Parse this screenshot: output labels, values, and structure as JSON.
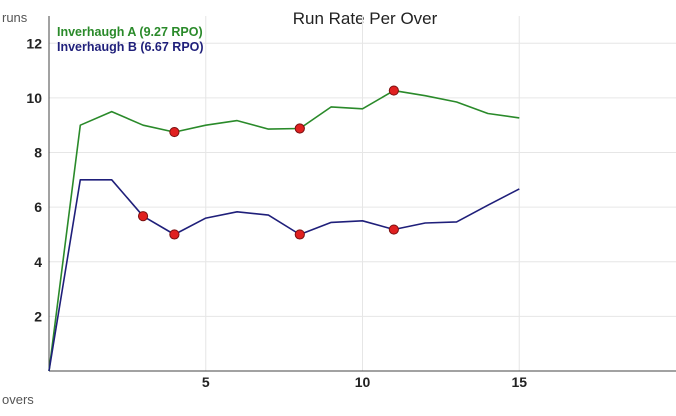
{
  "chart_data": {
    "type": "line",
    "title": "Run Rate Per Over",
    "ylabel": "runs",
    "xlabel": "overs",
    "xlim": [
      0,
      20
    ],
    "ylim": [
      0,
      13
    ],
    "xticks": [
      5,
      10,
      15
    ],
    "yticks": [
      2,
      4,
      6,
      8,
      10,
      12
    ],
    "grid": true,
    "legend_position": "top-left",
    "x": [
      0,
      1,
      2,
      3,
      4,
      5,
      6,
      7,
      8,
      9,
      10,
      11,
      12,
      13,
      14,
      15
    ],
    "series": [
      {
        "name": "Inverhaugh A (9.27 RPO)",
        "color": "#2a8a2a",
        "values": [
          0,
          9.0,
          9.5,
          9.0,
          8.75,
          9.0,
          9.17,
          8.86,
          8.88,
          9.67,
          9.6,
          10.27,
          10.08,
          9.85,
          9.43,
          9.27
        ],
        "wicket_overs": [
          4,
          8,
          11
        ]
      },
      {
        "name": "Inverhaugh B (6.67 RPO)",
        "color": "#1f1f7a",
        "values": [
          0,
          7.0,
          7.0,
          5.67,
          5.0,
          5.6,
          5.83,
          5.71,
          5.0,
          5.44,
          5.5,
          5.18,
          5.42,
          5.46,
          6.07,
          6.67
        ],
        "wicket_overs": [
          3,
          4,
          8,
          11
        ]
      }
    ],
    "wicket_marker_color": "#e02020"
  }
}
